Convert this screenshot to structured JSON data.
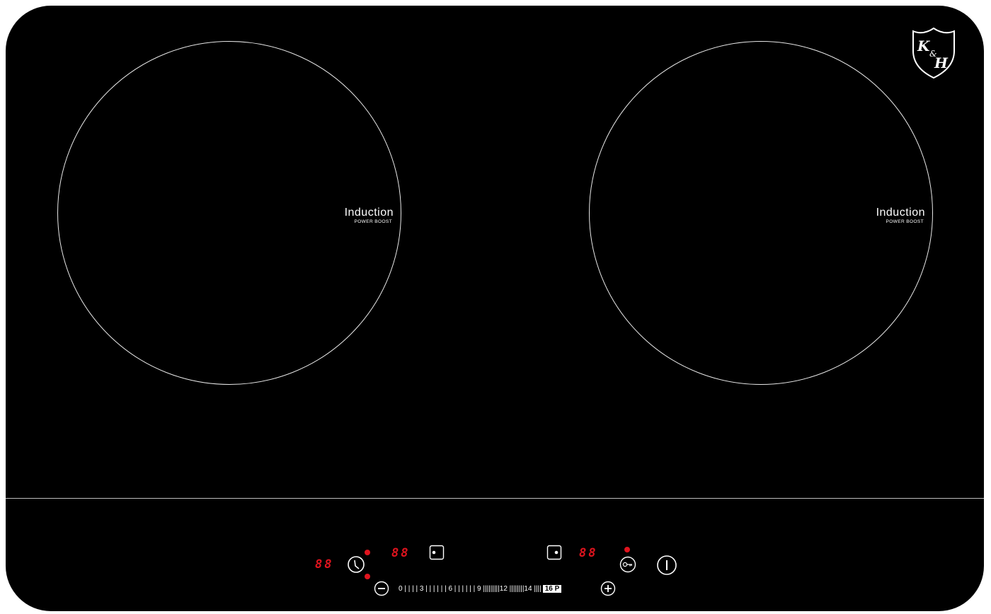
{
  "brand": {
    "logo_text": "K&H"
  },
  "zones": [
    {
      "id": "left",
      "label": "Induction",
      "sublabel": "POWER BOOST"
    },
    {
      "id": "right",
      "label": "Induction",
      "sublabel": "POWER BOOST"
    }
  ],
  "controls": {
    "timer_display": "88",
    "left_zone_display": "88",
    "right_zone_display": "88",
    "power_scale": {
      "ticks_text": "0 | | | | 3 | | | | | | 6 | | | | | | 9 |||||||||12 ||||||||14 |||| ",
      "boost_label": "16 P"
    }
  },
  "icons": {
    "timer": "timer-clock-icon",
    "left_zone_select": "zone-select-left-icon",
    "right_zone_select": "zone-select-right-icon",
    "lock": "key-lock-icon",
    "power": "power-icon",
    "minus": "minus-icon",
    "plus": "plus-icon"
  },
  "colors": {
    "surface": "#000000",
    "indicator_red": "#e0141e",
    "printed_lines": "#e8e8e8"
  }
}
